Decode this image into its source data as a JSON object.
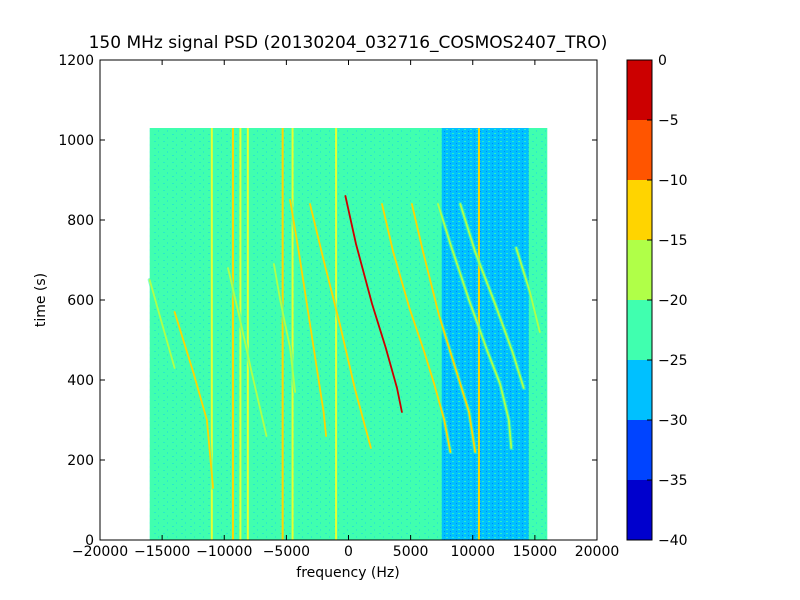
{
  "chart_data": {
    "type": "heatmap",
    "title": "150 MHz signal PSD (20130204_032716_COSMOS2407_TRO)",
    "xlabel": "frequency (Hz)",
    "ylabel": "time (s)",
    "xlim": [
      -20000,
      20000
    ],
    "ylim": [
      0,
      1200
    ],
    "xticks": [
      -20000,
      -15000,
      -10000,
      -5000,
      0,
      5000,
      10000,
      15000,
      20000
    ],
    "xtick_labels": [
      "−20000",
      "−15000",
      "−10000",
      "−5000",
      "0",
      "5000",
      "10000",
      "15000",
      "20000"
    ],
    "yticks": [
      0,
      200,
      400,
      600,
      800,
      1000,
      1200
    ],
    "ytick_labels": [
      "0",
      "200",
      "400",
      "600",
      "800",
      "1000",
      "1200"
    ],
    "data_extent": {
      "x": [
        -16000,
        16000
      ],
      "y": [
        0,
        1030
      ]
    },
    "background_level": [
      -25,
      -20
    ],
    "quiet_band_hz": [
      7500,
      14500
    ],
    "colorbar": {
      "min": -40,
      "max": 0,
      "ticks": [
        0,
        -5,
        -10,
        -15,
        -20,
        -25,
        -30,
        -35,
        -40
      ],
      "tick_labels": [
        "0",
        "−5",
        "−10",
        "−15",
        "−20",
        "−25",
        "−30",
        "−35",
        "−40"
      ],
      "levels": [
        {
          "range": [
            -40,
            -35
          ],
          "color": "#0000cd"
        },
        {
          "range": [
            -35,
            -30
          ],
          "color": "#0044ff"
        },
        {
          "range": [
            -30,
            -25
          ],
          "color": "#00c0ff"
        },
        {
          "range": [
            -25,
            -20
          ],
          "color": "#40ffaf"
        },
        {
          "range": [
            -20,
            -15
          ],
          "color": "#b0ff48"
        },
        {
          "range": [
            -15,
            -10
          ],
          "color": "#ffd400"
        },
        {
          "range": [
            -10,
            -5
          ],
          "color": "#ff5500"
        },
        {
          "range": [
            -5,
            0
          ],
          "color": "#cc0000"
        }
      ]
    },
    "vertical_lines_hz": [
      -11000,
      -9300,
      -8700,
      -8100,
      -5300,
      -4500,
      -1000,
      10500
    ],
    "doppler_tracks": [
      {
        "points": [
          [
            -16000,
            650
          ],
          [
            -15000,
            540
          ],
          [
            -14000,
            430
          ]
        ],
        "peak": "green"
      },
      {
        "points": [
          [
            -14000,
            570
          ],
          [
            -12500,
            420
          ],
          [
            -11400,
            300
          ],
          [
            -10900,
            130
          ]
        ],
        "peak": "yellow"
      },
      {
        "points": [
          [
            -9700,
            680
          ],
          [
            -8800,
            560
          ],
          [
            -7800,
            420
          ],
          [
            -6600,
            260
          ]
        ],
        "peak": "green"
      },
      {
        "points": [
          [
            -6000,
            690
          ],
          [
            -5500,
            600
          ],
          [
            -4700,
            480
          ],
          [
            -4300,
            370
          ]
        ],
        "peak": "green"
      },
      {
        "points": [
          [
            -4700,
            850
          ],
          [
            -4000,
            720
          ],
          [
            -3000,
            520
          ],
          [
            -2000,
            320
          ],
          [
            -1800,
            260
          ]
        ],
        "peak": "yellow"
      },
      {
        "points": [
          [
            -3100,
            840
          ],
          [
            -2000,
            700
          ],
          [
            -700,
            540
          ],
          [
            500,
            380
          ],
          [
            1800,
            230
          ]
        ],
        "peak": "yellow"
      },
      {
        "points": [
          [
            -250,
            860
          ],
          [
            600,
            740
          ],
          [
            1900,
            590
          ],
          [
            3000,
            480
          ],
          [
            3900,
            380
          ],
          [
            4300,
            320
          ]
        ],
        "peak": "red"
      },
      {
        "points": [
          [
            2700,
            840
          ],
          [
            3600,
            720
          ],
          [
            4900,
            580
          ],
          [
            6100,
            470
          ],
          [
            6900,
            390
          ],
          [
            7700,
            300
          ],
          [
            8200,
            220
          ]
        ],
        "peak": "yellow"
      },
      {
        "points": [
          [
            5100,
            840
          ],
          [
            6000,
            720
          ],
          [
            7300,
            560
          ],
          [
            8700,
            420
          ],
          [
            9700,
            320
          ],
          [
            10200,
            220
          ]
        ],
        "peak": "yellow"
      },
      {
        "points": [
          [
            7200,
            840
          ],
          [
            8200,
            740
          ],
          [
            9700,
            600
          ],
          [
            11200,
            470
          ],
          [
            12200,
            390
          ],
          [
            12900,
            300
          ],
          [
            13100,
            230
          ]
        ],
        "peak": "green"
      },
      {
        "points": [
          [
            9000,
            840
          ],
          [
            10200,
            720
          ],
          [
            11800,
            590
          ],
          [
            13200,
            470
          ],
          [
            14100,
            380
          ]
        ],
        "peak": "green"
      },
      {
        "points": [
          [
            13500,
            730
          ],
          [
            14600,
            620
          ],
          [
            15400,
            520
          ]
        ],
        "peak": "green"
      }
    ]
  }
}
